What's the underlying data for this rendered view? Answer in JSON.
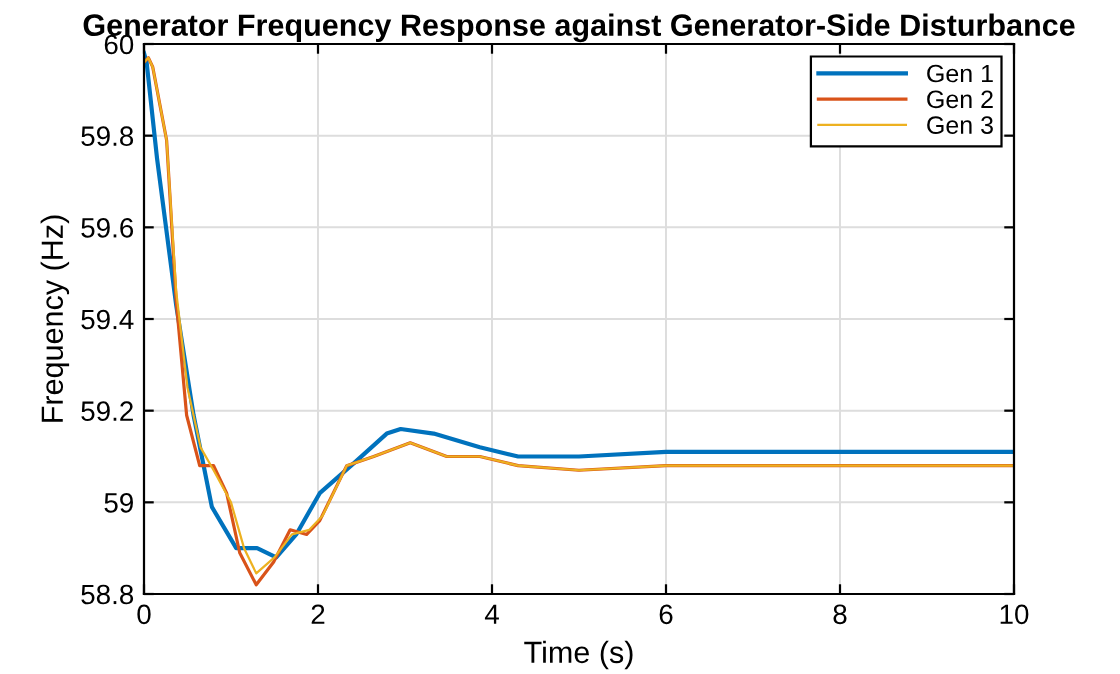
{
  "chart_data": {
    "type": "line",
    "title": "Generator Frequency Response against Generator-Side Disturbance",
    "xlabel": "Time (s)",
    "ylabel": "Frequency (Hz)",
    "xlim": [
      0,
      10
    ],
    "ylim": [
      58.8,
      60
    ],
    "xticks": [
      0,
      2,
      4,
      6,
      8,
      10
    ],
    "yticks": [
      58.8,
      59,
      59.2,
      59.4,
      59.6,
      59.8,
      60
    ],
    "grid": true,
    "legend": "top right",
    "marker": "none",
    "line_style": "solid",
    "series": [
      {
        "name": "Gen 1",
        "color": "#0072bd",
        "x": [
          0,
          0.03,
          0.15,
          0.37,
          0.57,
          0.78,
          1.06,
          1.3,
          1.52,
          1.75,
          2.02,
          2.41,
          2.79,
          2.95,
          3.33,
          3.86,
          4.3,
          5,
          6,
          8,
          10
        ],
        "values": [
          59.98,
          59.96,
          59.75,
          59.43,
          59.19,
          58.99,
          58.9,
          58.9,
          58.88,
          58.93,
          59.02,
          59.085,
          59.15,
          59.16,
          59.15,
          59.12,
          59.1,
          59.1,
          59.11,
          59.11,
          59.11
        ]
      },
      {
        "name": "Gen 2",
        "color": "#d95319",
        "x": [
          0,
          0.05,
          0.1,
          0.26,
          0.37,
          0.49,
          0.64,
          0.8,
          0.95,
          1.1,
          1.29,
          1.49,
          1.68,
          1.87,
          2.02,
          2.33,
          2.64,
          3.06,
          3.48,
          3.86,
          4.3,
          5,
          6,
          8,
          10
        ],
        "values": [
          59.96,
          59.97,
          59.95,
          59.79,
          59.44,
          59.19,
          59.08,
          59.08,
          59.02,
          58.89,
          58.82,
          58.87,
          58.94,
          58.93,
          58.96,
          59.08,
          59.1,
          59.13,
          59.1,
          59.1,
          59.08,
          59.07,
          59.08,
          59.08,
          59.08
        ]
      },
      {
        "name": "Gen 3",
        "color": "#edb120",
        "x": [
          0,
          0.05,
          0.1,
          0.26,
          0.37,
          0.5,
          0.65,
          0.8,
          1.0,
          1.15,
          1.29,
          1.5,
          1.7,
          1.9,
          2.05,
          2.33,
          2.64,
          3.06,
          3.48,
          3.86,
          4.3,
          5,
          6,
          8,
          10
        ],
        "values": [
          59.96,
          59.97,
          59.95,
          59.79,
          59.46,
          59.25,
          59.12,
          59.07,
          59.0,
          58.9,
          58.845,
          58.88,
          58.93,
          58.94,
          58.97,
          59.08,
          59.1,
          59.13,
          59.1,
          59.1,
          59.08,
          59.07,
          59.08,
          59.08,
          59.08
        ]
      }
    ]
  }
}
